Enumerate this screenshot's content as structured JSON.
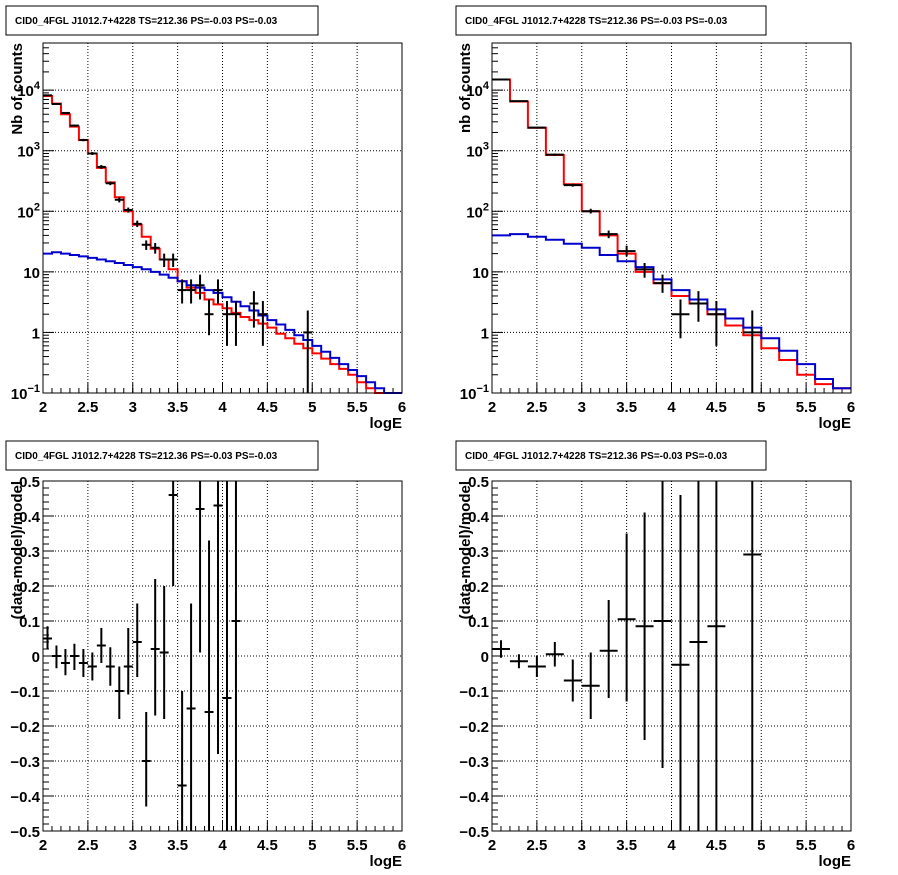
{
  "chart_data": [
    {
      "panel": "top-left",
      "type": "step-histogram",
      "title": "CID0_4FGL J1012.7+4228 TS=212.36 PS=-0.03 PS=-0.03",
      "xlabel": "logE",
      "ylabel": "Nb of counts",
      "xlim": [
        2,
        6
      ],
      "ylim": [
        0.1,
        60000
      ],
      "yscale": "log",
      "grid": true,
      "x_ticks": [
        "2",
        "2.5",
        "3",
        "3.5",
        "4",
        "4.5",
        "5",
        "5.5",
        "6"
      ],
      "y_ticks": [
        {
          "v": 0.1,
          "base": "10",
          "exp": "−1"
        },
        {
          "v": 1,
          "text": "1"
        },
        {
          "v": 10,
          "text": "10"
        },
        {
          "v": 100,
          "base": "10",
          "exp": "2"
        },
        {
          "v": 1000,
          "base": "10",
          "exp": "3"
        },
        {
          "v": 10000,
          "base": "10",
          "exp": "4"
        }
      ],
      "colors": {
        "total_model": "#ff0000",
        "background_model": "#0000cc",
        "data": "#000000"
      },
      "bin_edges": [
        2.0,
        2.1,
        2.2,
        2.3,
        2.4,
        2.5,
        2.6,
        2.7,
        2.8,
        2.9,
        3.0,
        3.1,
        3.2,
        3.3,
        3.4,
        3.5,
        3.6,
        3.7,
        3.8,
        3.9,
        4.0,
        4.1,
        4.2,
        4.3,
        4.4,
        4.5,
        4.6,
        4.7,
        4.8,
        4.9,
        5.0,
        5.1,
        5.2,
        5.3,
        5.4,
        5.5,
        5.6,
        5.7,
        5.8,
        5.9,
        6.0
      ],
      "series": [
        {
          "role": "total_model",
          "values": [
            8000,
            6000,
            4000,
            2500,
            1500,
            900,
            520,
            300,
            170,
            100,
            60,
            38,
            24,
            16,
            11,
            7,
            5.5,
            4.5,
            3.5,
            2.9,
            2.5,
            2.1,
            1.8,
            1.6,
            1.4,
            1.2,
            0.95,
            0.8,
            0.65,
            0.55,
            0.45,
            0.37,
            0.3,
            0.25,
            0.2,
            0.15,
            0.12,
            0.1,
            0.1,
            0.1
          ]
        },
        {
          "role": "background_model",
          "values": [
            20,
            21,
            20,
            19,
            18,
            17,
            16,
            15,
            14,
            13,
            12,
            11,
            10,
            9,
            8,
            7,
            6,
            5.5,
            5,
            4.5,
            3.8,
            3.2,
            2.7,
            2.3,
            1.9,
            1.6,
            1.35,
            1.1,
            0.9,
            0.75,
            0.6,
            0.48,
            0.38,
            0.3,
            0.24,
            0.19,
            0.15,
            0.12,
            0.1,
            0.1
          ]
        }
      ],
      "points": [
        {
          "x": 2.05,
          "y": 8200,
          "lo": 8000,
          "hi": 8400
        },
        {
          "x": 2.15,
          "y": 5900,
          "lo": 5750,
          "hi": 6050
        },
        {
          "x": 2.25,
          "y": 4200,
          "lo": 4070,
          "hi": 4330
        },
        {
          "x": 2.35,
          "y": 2600,
          "lo": 2500,
          "hi": 2700
        },
        {
          "x": 2.45,
          "y": 1500,
          "lo": 1430,
          "hi": 1570
        },
        {
          "x": 2.55,
          "y": 900,
          "lo": 850,
          "hi": 950
        },
        {
          "x": 2.65,
          "y": 540,
          "lo": 500,
          "hi": 580
        },
        {
          "x": 2.75,
          "y": 290,
          "lo": 270,
          "hi": 310
        },
        {
          "x": 2.85,
          "y": 155,
          "lo": 140,
          "hi": 170
        },
        {
          "x": 2.95,
          "y": 105,
          "lo": 95,
          "hi": 115
        },
        {
          "x": 3.05,
          "y": 62,
          "lo": 55,
          "hi": 70
        },
        {
          "x": 3.15,
          "y": 28,
          "lo": 23,
          "hi": 33
        },
        {
          "x": 3.25,
          "y": 25,
          "lo": 20,
          "hi": 30
        },
        {
          "x": 3.35,
          "y": 16,
          "lo": 12,
          "hi": 20
        },
        {
          "x": 3.45,
          "y": 16,
          "lo": 12,
          "hi": 20
        },
        {
          "x": 3.55,
          "y": 5,
          "lo": 3,
          "hi": 7.5
        },
        {
          "x": 3.65,
          "y": 5,
          "lo": 3,
          "hi": 7.5
        },
        {
          "x": 3.75,
          "y": 6,
          "lo": 3.5,
          "hi": 9
        },
        {
          "x": 3.85,
          "y": 2,
          "lo": 0.9,
          "hi": 3.5
        },
        {
          "x": 3.95,
          "y": 5,
          "lo": 3,
          "hi": 7.5
        },
        {
          "x": 4.05,
          "y": 2,
          "lo": 0.6,
          "hi": 3.3
        },
        {
          "x": 4.15,
          "y": 2,
          "lo": 0.6,
          "hi": 3.3
        },
        {
          "x": 4.35,
          "y": 3,
          "lo": 1.2,
          "hi": 4.8
        },
        {
          "x": 4.45,
          "y": 2,
          "lo": 0.6,
          "hi": 3.3
        },
        {
          "x": 4.95,
          "y": 1,
          "lo": 0.1,
          "hi": 2.3
        }
      ]
    },
    {
      "panel": "top-right",
      "type": "step-histogram",
      "title": "CID0_4FGL J1012.7+4228 TS=212.36 PS=-0.03 PS=-0.03",
      "xlabel": "logE",
      "ylabel": "nb of counts",
      "xlim": [
        2,
        6
      ],
      "ylim": [
        0.1,
        60000
      ],
      "yscale": "log",
      "grid": true,
      "x_ticks": [
        "2",
        "2.5",
        "3",
        "3.5",
        "4",
        "4.5",
        "5",
        "5.5",
        "6"
      ],
      "y_ticks": [
        {
          "v": 0.1,
          "base": "10",
          "exp": "−1"
        },
        {
          "v": 1,
          "text": "1"
        },
        {
          "v": 10,
          "text": "10"
        },
        {
          "v": 100,
          "base": "10",
          "exp": "2"
        },
        {
          "v": 1000,
          "base": "10",
          "exp": "3"
        },
        {
          "v": 10000,
          "base": "10",
          "exp": "4"
        }
      ],
      "colors": {
        "total_model": "#ff0000",
        "background_model": "#0000cc",
        "data": "#000000"
      },
      "bin_edges": [
        2.0,
        2.2,
        2.4,
        2.6,
        2.8,
        3.0,
        3.2,
        3.4,
        3.6,
        3.8,
        4.0,
        4.2,
        4.4,
        4.6,
        4.8,
        5.0,
        5.2,
        5.4,
        5.6,
        5.8,
        6.0
      ],
      "series": [
        {
          "role": "total_model",
          "values": [
            15000,
            6500,
            2400,
            850,
            280,
            100,
            40,
            20,
            10,
            6.5,
            4,
            3,
            2,
            1.3,
            0.9,
            0.55,
            0.35,
            0.2,
            0.14,
            0.12
          ]
        },
        {
          "role": "background_model",
          "values": [
            40,
            42,
            38,
            34,
            29,
            25,
            19,
            15,
            12,
            7.5,
            5,
            3.5,
            2.4,
            1.7,
            1.2,
            0.8,
            0.5,
            0.3,
            0.17,
            0.12
          ]
        }
      ],
      "points": [
        {
          "x": 2.1,
          "y": 15000,
          "lo": 14700,
          "hi": 15300
        },
        {
          "x": 2.3,
          "y": 6600,
          "lo": 6450,
          "hi": 6750
        },
        {
          "x": 2.5,
          "y": 2400,
          "lo": 2320,
          "hi": 2480
        },
        {
          "x": 2.7,
          "y": 860,
          "lo": 820,
          "hi": 900
        },
        {
          "x": 2.9,
          "y": 270,
          "lo": 255,
          "hi": 285
        },
        {
          "x": 3.1,
          "y": 100,
          "lo": 92,
          "hi": 110
        },
        {
          "x": 3.3,
          "y": 42,
          "lo": 36,
          "hi": 48
        },
        {
          "x": 3.5,
          "y": 22,
          "lo": 18,
          "hi": 27
        },
        {
          "x": 3.7,
          "y": 11,
          "lo": 8,
          "hi": 14
        },
        {
          "x": 3.9,
          "y": 6.5,
          "lo": 4.5,
          "hi": 9
        },
        {
          "x": 4.1,
          "y": 2,
          "lo": 0.8,
          "hi": 3.5
        },
        {
          "x": 4.3,
          "y": 3,
          "lo": 1.5,
          "hi": 4.8
        },
        {
          "x": 4.5,
          "y": 2,
          "lo": 0.6,
          "hi": 3.3
        },
        {
          "x": 4.9,
          "y": 1,
          "lo": 0.1,
          "hi": 2.3
        }
      ]
    },
    {
      "panel": "bottom-left",
      "type": "scatter-errorbar",
      "title": "CID0_4FGL J1012.7+4228 TS=212.36 PS=-0.03 PS=-0.03",
      "xlabel": "logE",
      "ylabel": "(data-model)/model",
      "xlim": [
        2,
        6
      ],
      "ylim": [
        -0.5,
        0.5
      ],
      "grid": true,
      "x_ticks": [
        "2",
        "2.5",
        "3",
        "3.5",
        "4",
        "4.5",
        "5",
        "5.5",
        "6"
      ],
      "y_ticks": [
        "−0.5",
        "−0.4",
        "−0.3",
        "−0.2",
        "−0.1",
        "0",
        "0.1",
        "0.2",
        "0.3",
        "0.4",
        "0.5"
      ],
      "bin_half_width": 0.05,
      "points": [
        {
          "x": 2.05,
          "y": 0.05,
          "lo": 0.02,
          "hi": 0.085
        },
        {
          "x": 2.15,
          "y": 0.0,
          "lo": -0.035,
          "hi": 0.03
        },
        {
          "x": 2.25,
          "y": -0.02,
          "lo": -0.055,
          "hi": 0.02
        },
        {
          "x": 2.35,
          "y": 0.0,
          "lo": -0.04,
          "hi": 0.035
        },
        {
          "x": 2.45,
          "y": -0.02,
          "lo": -0.06,
          "hi": 0.02
        },
        {
          "x": 2.55,
          "y": -0.03,
          "lo": -0.07,
          "hi": 0.01
        },
        {
          "x": 2.65,
          "y": 0.03,
          "lo": -0.02,
          "hi": 0.08
        },
        {
          "x": 2.75,
          "y": -0.03,
          "lo": -0.085,
          "hi": 0.025
        },
        {
          "x": 2.85,
          "y": -0.1,
          "lo": -0.18,
          "hi": -0.03
        },
        {
          "x": 2.95,
          "y": -0.03,
          "lo": -0.11,
          "hi": 0.08
        },
        {
          "x": 3.05,
          "y": 0.04,
          "lo": -0.06,
          "hi": 0.15
        },
        {
          "x": 3.15,
          "y": -0.3,
          "lo": -0.43,
          "hi": -0.16
        },
        {
          "x": 3.25,
          "y": 0.02,
          "lo": -0.17,
          "hi": 0.22
        },
        {
          "x": 3.35,
          "y": 0.01,
          "lo": -0.18,
          "hi": 0.2
        },
        {
          "x": 3.45,
          "y": 0.46,
          "lo": 0.2,
          "hi": 0.5
        },
        {
          "x": 3.55,
          "y": -0.37,
          "lo": -0.5,
          "hi": -0.1
        },
        {
          "x": 3.65,
          "y": -0.15,
          "lo": -0.5,
          "hi": 0.15
        },
        {
          "x": 3.75,
          "y": 0.42,
          "lo": 0.01,
          "hi": 0.5
        },
        {
          "x": 3.85,
          "y": -0.16,
          "lo": -0.5,
          "hi": 0.33
        },
        {
          "x": 3.95,
          "y": 0.43,
          "lo": -0.28,
          "hi": 0.5
        },
        {
          "x": 4.05,
          "y": -0.12,
          "lo": -0.5,
          "hi": 0.5
        },
        {
          "x": 4.15,
          "y": 0.1,
          "lo": -0.5,
          "hi": 0.5
        }
      ]
    },
    {
      "panel": "bottom-right",
      "type": "scatter-errorbar",
      "title": "CID0_4FGL J1012.7+4228 TS=212.36 PS=-0.03 PS=-0.03",
      "xlabel": "logE",
      "ylabel": "(data-model)/model",
      "xlim": [
        2,
        6
      ],
      "ylim": [
        -0.5,
        0.5
      ],
      "grid": true,
      "x_ticks": [
        "2",
        "2.5",
        "3",
        "3.5",
        "4",
        "4.5",
        "5",
        "5.5",
        "6"
      ],
      "y_ticks": [
        "−0.5",
        "−0.4",
        "−0.3",
        "−0.2",
        "−0.1",
        "0",
        "0.1",
        "0.2",
        "0.3",
        "0.4",
        "0.5"
      ],
      "bin_half_width": 0.1,
      "points": [
        {
          "x": 2.1,
          "y": 0.02,
          "lo": -0.005,
          "hi": 0.045
        },
        {
          "x": 2.3,
          "y": -0.015,
          "lo": -0.035,
          "hi": 0.005
        },
        {
          "x": 2.5,
          "y": -0.03,
          "lo": -0.06,
          "hi": 0.0
        },
        {
          "x": 2.7,
          "y": 0.005,
          "lo": -0.03,
          "hi": 0.04
        },
        {
          "x": 2.9,
          "y": -0.07,
          "lo": -0.13,
          "hi": -0.01
        },
        {
          "x": 3.1,
          "y": -0.085,
          "lo": -0.18,
          "hi": 0.01
        },
        {
          "x": 3.3,
          "y": 0.015,
          "lo": -0.12,
          "hi": 0.16
        },
        {
          "x": 3.5,
          "y": 0.105,
          "lo": -0.13,
          "hi": 0.35
        },
        {
          "x": 3.7,
          "y": 0.085,
          "lo": -0.24,
          "hi": 0.41
        },
        {
          "x": 3.9,
          "y": 0.1,
          "lo": -0.32,
          "hi": 0.5
        },
        {
          "x": 4.1,
          "y": -0.025,
          "lo": -0.5,
          "hi": 0.46
        },
        {
          "x": 4.3,
          "y": 0.04,
          "lo": -0.5,
          "hi": 0.5
        },
        {
          "x": 4.5,
          "y": 0.085,
          "lo": -0.5,
          "hi": 0.5
        },
        {
          "x": 4.9,
          "y": 0.29,
          "lo": -0.5,
          "hi": 0.5
        }
      ]
    }
  ]
}
